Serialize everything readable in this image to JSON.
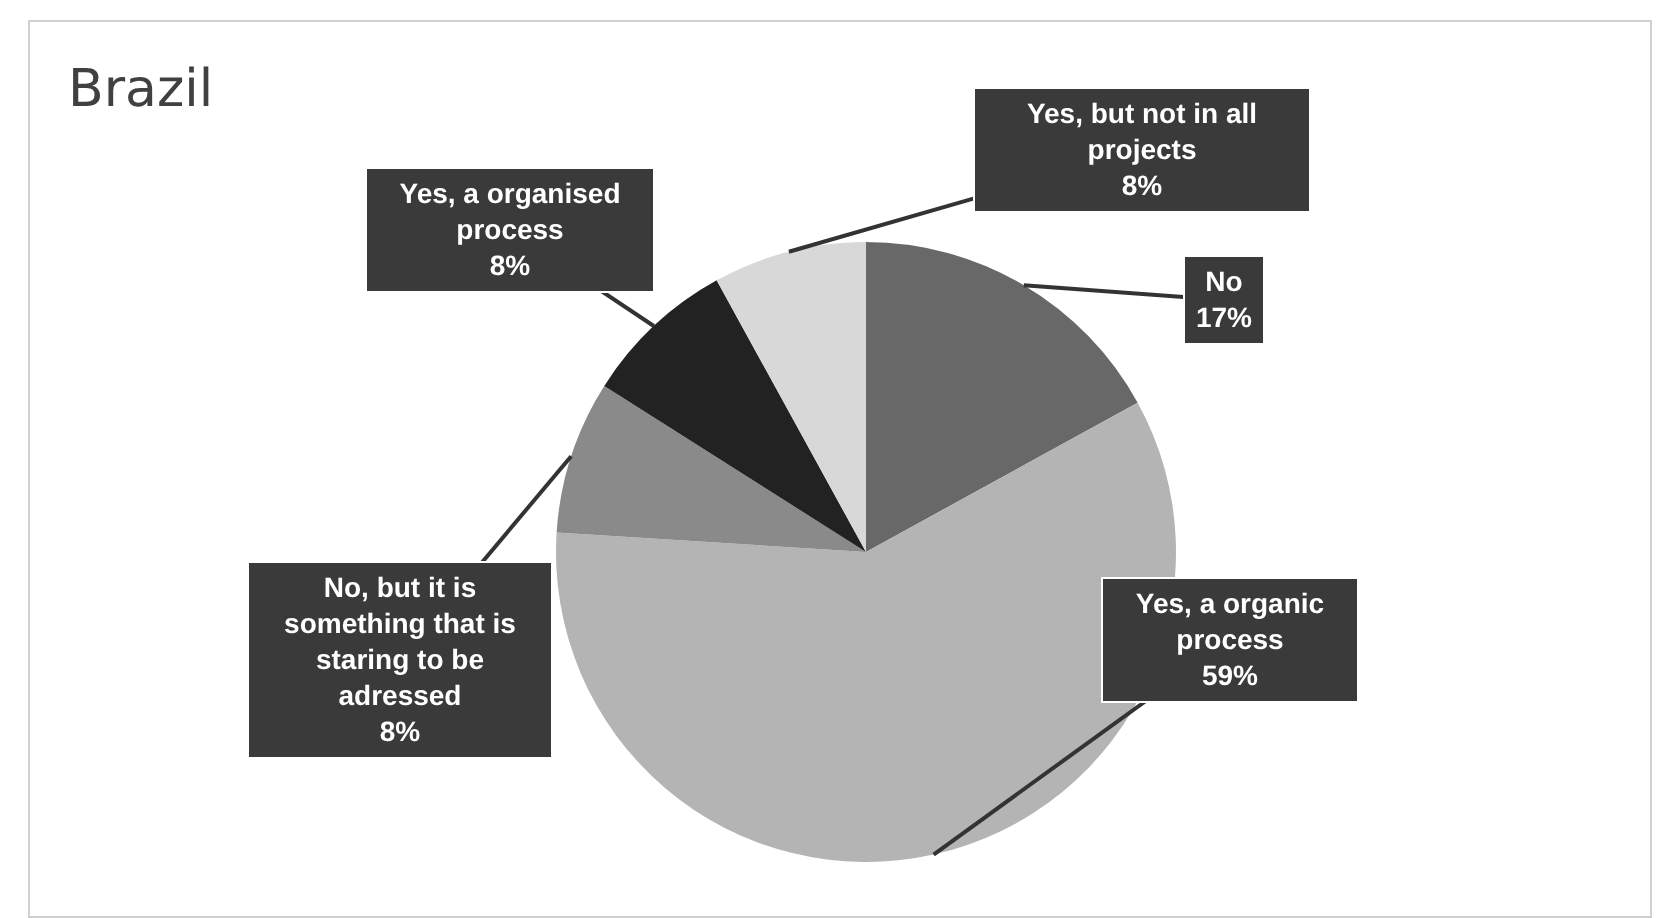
{
  "chart_data": {
    "type": "pie",
    "title": "Brazil",
    "categories": [
      "No",
      "Yes, a organic process",
      "No, but it is something that is staring to be adressed",
      "Yes, a organised process",
      "Yes, but not in all projects"
    ],
    "values": [
      17,
      59,
      8,
      8,
      8
    ],
    "value_labels": [
      "17%",
      "59%",
      "8%",
      "8%",
      "8%"
    ],
    "colors": [
      "#686868",
      "#b4b4b4",
      "#8a8a8a",
      "#222222",
      "#d8d8d8"
    ],
    "legend": false
  }
}
